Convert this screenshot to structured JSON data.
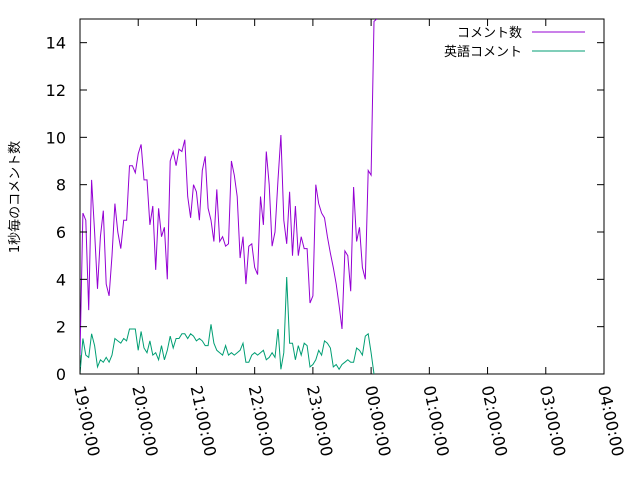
{
  "chart_data": {
    "type": "line",
    "title": "",
    "xlabel": "",
    "ylabel": "1秒毎のコメント数",
    "ylim": [
      0,
      15
    ],
    "yticks": [
      0,
      2,
      4,
      6,
      8,
      10,
      12,
      14
    ],
    "xlim": [
      "19:00:00",
      "04:00:00"
    ],
    "xticks": [
      "19:00:00",
      "20:00:00",
      "21:00:00",
      "22:00:00",
      "23:00:00",
      "00:00:00",
      "01:00:00",
      "02:00:00",
      "03:00:00",
      "04:00:00"
    ],
    "grid": false,
    "legend_position": "top-right",
    "series": [
      {
        "name": "コメント数",
        "color": "#9400d3",
        "points": [
          [
            "19:00:00",
            0.8
          ],
          [
            "19:03:00",
            6.8
          ],
          [
            "19:06:00",
            6.5
          ],
          [
            "19:09:00",
            2.7
          ],
          [
            "19:12:00",
            8.2
          ],
          [
            "19:15:00",
            6.0
          ],
          [
            "19:18:00",
            3.6
          ],
          [
            "19:21:00",
            5.8
          ],
          [
            "19:24:00",
            6.9
          ],
          [
            "19:27:00",
            3.8
          ],
          [
            "19:30:00",
            3.3
          ],
          [
            "19:33:00",
            5.0
          ],
          [
            "19:36:00",
            7.2
          ],
          [
            "19:39:00",
            6.0
          ],
          [
            "19:42:00",
            5.3
          ],
          [
            "19:45:00",
            6.5
          ],
          [
            "19:48:00",
            6.5
          ],
          [
            "19:51:00",
            8.8
          ],
          [
            "19:54:00",
            8.8
          ],
          [
            "19:57:00",
            8.5
          ],
          [
            "20:00:00",
            9.3
          ],
          [
            "20:03:00",
            9.7
          ],
          [
            "20:06:00",
            8.2
          ],
          [
            "20:09:00",
            8.2
          ],
          [
            "20:12:00",
            6.3
          ],
          [
            "20:15:00",
            7.1
          ],
          [
            "20:18:00",
            4.4
          ],
          [
            "20:21:00",
            7.0
          ],
          [
            "20:24:00",
            5.8
          ],
          [
            "20:27:00",
            6.2
          ],
          [
            "20:30:00",
            4.0
          ],
          [
            "20:33:00",
            9.0
          ],
          [
            "20:36:00",
            9.4
          ],
          [
            "20:39:00",
            8.8
          ],
          [
            "20:42:00",
            9.5
          ],
          [
            "20:45:00",
            9.4
          ],
          [
            "20:48:00",
            9.9
          ],
          [
            "20:51:00",
            7.5
          ],
          [
            "20:54:00",
            6.6
          ],
          [
            "20:57:00",
            8.0
          ],
          [
            "21:00:00",
            7.7
          ],
          [
            "21:03:00",
            6.5
          ],
          [
            "21:06:00",
            8.6
          ],
          [
            "21:09:00",
            9.2
          ],
          [
            "21:12:00",
            7.0
          ],
          [
            "21:15:00",
            6.5
          ],
          [
            "21:18:00",
            5.6
          ],
          [
            "21:21:00",
            7.8
          ],
          [
            "21:24:00",
            5.6
          ],
          [
            "21:27:00",
            5.8
          ],
          [
            "21:30:00",
            5.4
          ],
          [
            "21:33:00",
            5.5
          ],
          [
            "21:36:00",
            9.0
          ],
          [
            "21:39:00",
            8.4
          ],
          [
            "21:42:00",
            7.5
          ],
          [
            "21:45:00",
            4.9
          ],
          [
            "21:48:00",
            5.8
          ],
          [
            "21:51:00",
            3.8
          ],
          [
            "21:54:00",
            5.4
          ],
          [
            "21:57:00",
            5.5
          ],
          [
            "22:00:00",
            4.5
          ],
          [
            "22:03:00",
            4.2
          ],
          [
            "22:06:00",
            7.5
          ],
          [
            "22:09:00",
            6.3
          ],
          [
            "22:12:00",
            9.4
          ],
          [
            "22:15:00",
            8.0
          ],
          [
            "22:18:00",
            5.4
          ],
          [
            "22:21:00",
            6.0
          ],
          [
            "22:24:00",
            8.2
          ],
          [
            "22:27:00",
            10.1
          ],
          [
            "22:30:00",
            6.5
          ],
          [
            "22:33:00",
            5.5
          ],
          [
            "22:36:00",
            7.7
          ],
          [
            "22:39:00",
            5.0
          ],
          [
            "22:42:00",
            7.1
          ],
          [
            "22:45:00",
            5.0
          ],
          [
            "22:48:00",
            5.8
          ],
          [
            "22:51:00",
            5.3
          ],
          [
            "22:54:00",
            5.3
          ],
          [
            "22:57:00",
            3.0
          ],
          [
            "23:00:00",
            3.3
          ],
          [
            "23:03:00",
            8.0
          ],
          [
            "23:06:00",
            7.2
          ],
          [
            "23:09:00",
            6.8
          ],
          [
            "23:12:00",
            6.6
          ],
          [
            "23:15:00",
            5.8
          ],
          [
            "23:18:00",
            5.1
          ],
          [
            "23:21:00",
            4.5
          ],
          [
            "23:24:00",
            3.8
          ],
          [
            "23:27:00",
            2.9
          ],
          [
            "23:30:00",
            1.9
          ],
          [
            "23:33:00",
            5.2
          ],
          [
            "23:36:00",
            5.0
          ],
          [
            "23:39:00",
            3.5
          ],
          [
            "23:42:00",
            7.9
          ],
          [
            "23:45:00",
            5.6
          ],
          [
            "23:48:00",
            6.2
          ],
          [
            "23:51:00",
            4.5
          ],
          [
            "23:54:00",
            4.0
          ],
          [
            "23:57:00",
            8.6
          ],
          [
            "00:00:00",
            8.4
          ],
          [
            "00:03:00",
            14.9
          ],
          [
            "00:06:00",
            15.0
          ]
        ]
      },
      {
        "name": "英語コメント",
        "color": "#009e73",
        "points": [
          [
            "19:00:00",
            0.0
          ],
          [
            "19:03:00",
            1.5
          ],
          [
            "19:06:00",
            0.8
          ],
          [
            "19:09:00",
            0.7
          ],
          [
            "19:12:00",
            1.7
          ],
          [
            "19:15:00",
            1.2
          ],
          [
            "19:18:00",
            0.3
          ],
          [
            "19:21:00",
            0.6
          ],
          [
            "19:24:00",
            0.5
          ],
          [
            "19:27:00",
            0.7
          ],
          [
            "19:30:00",
            0.5
          ],
          [
            "19:33:00",
            0.8
          ],
          [
            "19:36:00",
            1.5
          ],
          [
            "19:39:00",
            1.4
          ],
          [
            "19:42:00",
            1.3
          ],
          [
            "19:45:00",
            1.5
          ],
          [
            "19:48:00",
            1.4
          ],
          [
            "19:51:00",
            1.9
          ],
          [
            "19:54:00",
            1.9
          ],
          [
            "19:57:00",
            1.9
          ],
          [
            "20:00:00",
            1.0
          ],
          [
            "20:03:00",
            1.8
          ],
          [
            "20:06:00",
            1.1
          ],
          [
            "20:09:00",
            0.9
          ],
          [
            "20:12:00",
            1.4
          ],
          [
            "20:15:00",
            0.8
          ],
          [
            "20:18:00",
            0.9
          ],
          [
            "20:21:00",
            0.6
          ],
          [
            "20:24:00",
            1.2
          ],
          [
            "20:27:00",
            0.6
          ],
          [
            "20:30:00",
            1.0
          ],
          [
            "20:33:00",
            1.6
          ],
          [
            "20:36:00",
            1.1
          ],
          [
            "20:39:00",
            1.5
          ],
          [
            "20:42:00",
            1.5
          ],
          [
            "20:45:00",
            1.7
          ],
          [
            "20:48:00",
            1.7
          ],
          [
            "20:51:00",
            1.5
          ],
          [
            "20:54:00",
            1.7
          ],
          [
            "20:57:00",
            1.6
          ],
          [
            "21:00:00",
            1.4
          ],
          [
            "21:03:00",
            1.5
          ],
          [
            "21:06:00",
            1.4
          ],
          [
            "21:09:00",
            1.2
          ],
          [
            "21:12:00",
            1.2
          ],
          [
            "21:15:00",
            2.1
          ],
          [
            "21:18:00",
            1.3
          ],
          [
            "21:21:00",
            1.0
          ],
          [
            "21:24:00",
            0.9
          ],
          [
            "21:27:00",
            0.8
          ],
          [
            "21:30:00",
            1.2
          ],
          [
            "21:33:00",
            0.8
          ],
          [
            "21:36:00",
            0.9
          ],
          [
            "21:39:00",
            0.8
          ],
          [
            "21:42:00",
            0.9
          ],
          [
            "21:45:00",
            1.0
          ],
          [
            "21:48:00",
            1.3
          ],
          [
            "21:51:00",
            0.5
          ],
          [
            "21:54:00",
            0.5
          ],
          [
            "21:57:00",
            0.8
          ],
          [
            "22:00:00",
            0.9
          ],
          [
            "22:03:00",
            0.8
          ],
          [
            "22:06:00",
            0.9
          ],
          [
            "22:09:00",
            1.0
          ],
          [
            "22:12:00",
            0.6
          ],
          [
            "22:15:00",
            0.7
          ],
          [
            "22:18:00",
            0.9
          ],
          [
            "22:21:00",
            0.7
          ],
          [
            "22:24:00",
            1.9
          ],
          [
            "22:27:00",
            0.2
          ],
          [
            "22:30:00",
            0.9
          ],
          [
            "22:33:00",
            4.1
          ],
          [
            "22:36:00",
            1.3
          ],
          [
            "22:39:00",
            1.3
          ],
          [
            "22:42:00",
            0.6
          ],
          [
            "22:45:00",
            1.2
          ],
          [
            "22:48:00",
            0.8
          ],
          [
            "22:51:00",
            1.3
          ],
          [
            "22:54:00",
            1.2
          ],
          [
            "22:57:00",
            0.3
          ],
          [
            "23:00:00",
            0.4
          ],
          [
            "23:03:00",
            0.6
          ],
          [
            "23:06:00",
            1.0
          ],
          [
            "23:09:00",
            0.8
          ],
          [
            "23:12:00",
            1.4
          ],
          [
            "23:15:00",
            1.3
          ],
          [
            "23:18:00",
            1.1
          ],
          [
            "23:21:00",
            0.3
          ],
          [
            "23:24:00",
            0.4
          ],
          [
            "23:27:00",
            0.2
          ],
          [
            "23:30:00",
            0.4
          ],
          [
            "23:33:00",
            0.5
          ],
          [
            "23:36:00",
            0.6
          ],
          [
            "23:39:00",
            0.5
          ],
          [
            "23:42:00",
            0.5
          ],
          [
            "23:45:00",
            1.1
          ],
          [
            "23:48:00",
            1.0
          ],
          [
            "23:51:00",
            0.8
          ],
          [
            "23:54:00",
            1.6
          ],
          [
            "23:57:00",
            1.7
          ],
          [
            "00:00:00",
            0.9
          ],
          [
            "00:03:00",
            0.0
          ]
        ]
      }
    ]
  }
}
